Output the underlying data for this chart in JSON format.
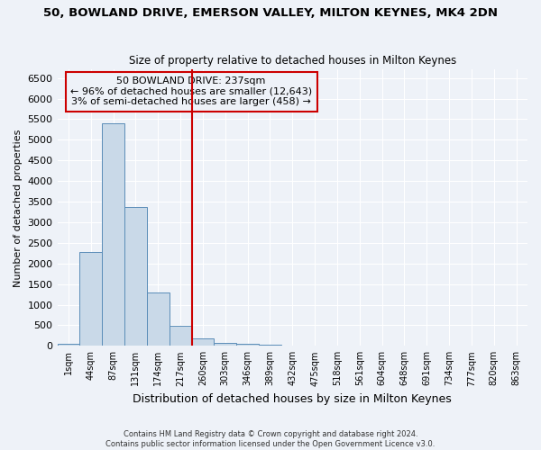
{
  "title": "50, BOWLAND DRIVE, EMERSON VALLEY, MILTON KEYNES, MK4 2DN",
  "subtitle": "Size of property relative to detached houses in Milton Keynes",
  "xlabel": "Distribution of detached houses by size in Milton Keynes",
  "ylabel": "Number of detached properties",
  "bin_labels": [
    "1sqm",
    "44sqm",
    "87sqm",
    "131sqm",
    "174sqm",
    "217sqm",
    "260sqm",
    "303sqm",
    "346sqm",
    "389sqm",
    "432sqm",
    "475sqm",
    "518sqm",
    "561sqm",
    "604sqm",
    "648sqm",
    "691sqm",
    "734sqm",
    "777sqm",
    "820sqm",
    "863sqm"
  ],
  "bar_values": [
    50,
    2280,
    5400,
    3380,
    1300,
    480,
    175,
    75,
    50,
    30,
    0,
    0,
    0,
    0,
    0,
    0,
    0,
    0,
    0,
    0,
    0
  ],
  "bar_color": "#c9d9e8",
  "bar_edgecolor": "#5b8db8",
  "annotation_line1": "50 BOWLAND DRIVE: 237sqm",
  "annotation_line2": "← 96% of detached houses are smaller (12,643)",
  "annotation_line3": "3% of semi-detached houses are larger (458) →",
  "vline_color": "#cc0000",
  "annotation_box_color": "#cc0000",
  "ylim": [
    0,
    6700
  ],
  "yticks": [
    0,
    500,
    1000,
    1500,
    2000,
    2500,
    3000,
    3500,
    4000,
    4500,
    5000,
    5500,
    6000,
    6500
  ],
  "footer1": "Contains HM Land Registry data © Crown copyright and database right 2024.",
  "footer2": "Contains public sector information licensed under the Open Government Licence v3.0.",
  "bg_color": "#eef2f8",
  "grid_color": "#ffffff",
  "vline_x": 5.5
}
